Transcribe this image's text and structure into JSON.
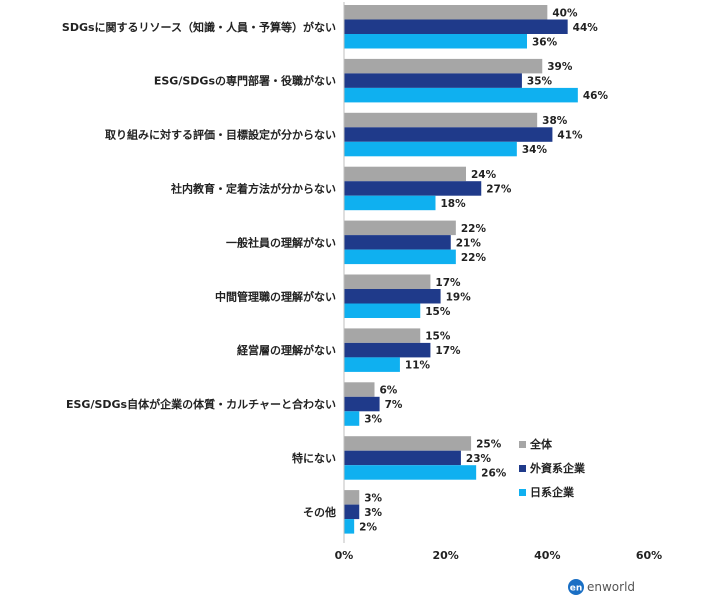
{
  "chart_data": {
    "type": "bar",
    "orientation": "horizontal",
    "categories": [
      "SDGsに関するリソース（知識・人員・予算等）がない",
      "ESG/SDGsの専門部署・役職がない",
      "取り組みに対する評価・目標設定が分からない",
      "社内教育・定着方法が分からない",
      "一般社員の理解がない",
      "中間管理職の理解がない",
      "経営層の理解がない",
      "ESG/SDGs自体が企業の体質・カルチャーと合わない",
      "特にない",
      "その他"
    ],
    "series": [
      {
        "name": "全体",
        "color": "#a6a6a6",
        "values": [
          40,
          39,
          38,
          24,
          22,
          17,
          15,
          6,
          25,
          3
        ]
      },
      {
        "name": "外資系企業",
        "color": "#1f3a8a",
        "values": [
          44,
          35,
          41,
          27,
          21,
          19,
          17,
          7,
          23,
          3
        ]
      },
      {
        "name": "日系企業",
        "color": "#0fb0f0",
        "values": [
          36,
          46,
          34,
          18,
          22,
          15,
          11,
          3,
          26,
          2
        ]
      }
    ],
    "value_suffix": "%",
    "xlim": [
      0,
      60
    ],
    "xticks": [
      0,
      20,
      40,
      60
    ],
    "xtick_labels": [
      "0%",
      "20%",
      "40%",
      "60%"
    ],
    "grid": false,
    "legend_position": "right-middle",
    "title": "",
    "xlabel": "",
    "ylabel": ""
  },
  "brand": {
    "logo_text": "en",
    "name": "enworld",
    "logo_color": "#1a6fc4"
  }
}
